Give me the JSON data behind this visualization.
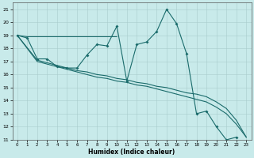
{
  "xlabel": "Humidex (Indice chaleur)",
  "xlim": [
    -0.5,
    23.5
  ],
  "ylim": [
    11,
    21.5
  ],
  "xticks": [
    0,
    1,
    2,
    3,
    4,
    5,
    6,
    7,
    8,
    9,
    10,
    11,
    12,
    13,
    14,
    15,
    16,
    17,
    18,
    19,
    20,
    21,
    22,
    23
  ],
  "yticks": [
    11,
    12,
    13,
    14,
    15,
    16,
    17,
    18,
    19,
    20,
    21
  ],
  "bg_color": "#c8eaea",
  "grid_color": "#a8cccc",
  "line_color": "#1a6b6b",
  "line_wiggly_x": [
    0,
    1,
    2,
    3,
    4,
    5,
    6,
    7,
    8,
    9,
    10,
    11,
    12,
    13,
    14,
    15,
    16,
    17,
    18,
    19,
    20,
    21,
    22
  ],
  "line_wiggly_y": [
    19,
    18.8,
    17.2,
    17.2,
    16.6,
    16.5,
    16.5,
    17.5,
    18.3,
    18.2,
    19.7,
    15.5,
    18.3,
    18.5,
    19.3,
    21.0,
    19.9,
    17.6,
    13.0,
    13.2,
    12.0,
    11.0,
    11.2
  ],
  "line_flat_x": [
    0,
    1,
    2,
    3,
    4,
    5,
    6,
    7,
    8,
    9,
    10
  ],
  "line_flat_y": [
    19,
    18.9,
    18.9,
    18.9,
    18.9,
    18.9,
    18.9,
    18.9,
    18.9,
    18.9,
    18.9
  ],
  "line_straight1_x": [
    0,
    2,
    3,
    4,
    5,
    6,
    7,
    8,
    9,
    10,
    11,
    12,
    13,
    14,
    15,
    16,
    17,
    18,
    19,
    20,
    21,
    22,
    23
  ],
  "line_straight1_y": [
    19,
    17.1,
    16.9,
    16.7,
    16.5,
    16.3,
    16.2,
    16.0,
    15.9,
    15.7,
    15.6,
    15.4,
    15.3,
    15.1,
    15.0,
    14.8,
    14.6,
    14.5,
    14.3,
    13.9,
    13.4,
    12.5,
    11.2
  ],
  "line_straight2_x": [
    0,
    2,
    3,
    4,
    5,
    6,
    7,
    8,
    9,
    10,
    11,
    12,
    13,
    14,
    15,
    16,
    17,
    18,
    19,
    20,
    21,
    22,
    23
  ],
  "line_straight2_y": [
    19,
    17.0,
    16.8,
    16.6,
    16.4,
    16.2,
    16.0,
    15.8,
    15.7,
    15.5,
    15.4,
    15.2,
    15.1,
    14.9,
    14.7,
    14.5,
    14.3,
    14.1,
    13.9,
    13.5,
    13.0,
    12.2,
    11.2
  ]
}
